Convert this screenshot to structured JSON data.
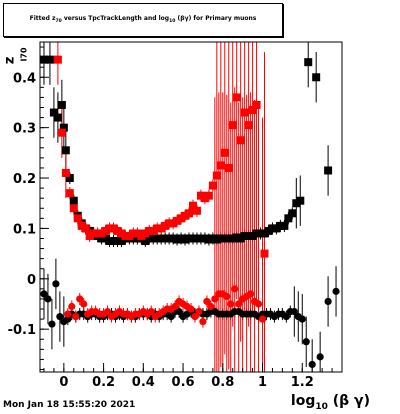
{
  "title": {
    "prefix": "Fitted z",
    "prefix_sub": "70",
    "middle": " versus TpcTrackLength and log",
    "middle_sub": "10",
    "suffix": "(βγ) for Primary muons"
  },
  "axis": {
    "ylabel_main": "z",
    "ylabel_sub": "I70",
    "xlabel_main": "log",
    "xlabel_sub": "10",
    "xlabel_suffix": " (β γ)"
  },
  "footer": "Mon Jan 18 15:55:20 2021",
  "colors": {
    "series1": "#000000",
    "series2": "#ff0000",
    "frame": "#000000"
  },
  "chart_data": {
    "type": "scatter",
    "title": "Fitted z70 versus TpcTrackLength and log10(βγ) for Primary muons",
    "xlabel": "log10 (β γ)",
    "ylabel": "z_I70",
    "xlim": [
      -0.12,
      1.4
    ],
    "ylim": [
      -0.185,
      0.47
    ],
    "grid": false,
    "legend": "none",
    "x_ticks": [
      0,
      0.2,
      0.4,
      0.6,
      0.8,
      1,
      1.2
    ],
    "x_tick_labels": [
      "0",
      "0.2",
      "0.4",
      "0.6",
      "0.8",
      "1",
      "1.2"
    ],
    "y_ticks": [
      -0.1,
      0,
      0.1,
      0.2,
      0.3,
      0.4
    ],
    "y_tick_labels": [
      "-0.1",
      "0",
      "0.1",
      "0.2",
      "0.3",
      "0.4"
    ],
    "series": [
      {
        "marker": "square",
        "color": "#000000",
        "x": [
          -0.1,
          -0.07,
          -0.05,
          -0.03,
          -0.01,
          0.0,
          0.01,
          0.03,
          0.05,
          0.07,
          0.09,
          0.11,
          0.13,
          0.15,
          0.17,
          0.19,
          0.21,
          0.23,
          0.25,
          0.27,
          0.29,
          0.31,
          0.33,
          0.35,
          0.37,
          0.39,
          0.41,
          0.43,
          0.45,
          0.47,
          0.49,
          0.51,
          0.53,
          0.55,
          0.57,
          0.59,
          0.61,
          0.63,
          0.65,
          0.67,
          0.69,
          0.71,
          0.73,
          0.75,
          0.77,
          0.79,
          0.81,
          0.83,
          0.85,
          0.87,
          0.89,
          0.91,
          0.93,
          0.95,
          0.97,
          0.99,
          1.01,
          1.03,
          1.05,
          1.07,
          1.09,
          1.11,
          1.13,
          1.15,
          1.17,
          1.19,
          1.23,
          1.27,
          1.33
        ],
        "y": [
          0.435,
          0.435,
          0.33,
          0.32,
          0.345,
          0.3,
          0.255,
          0.2,
          0.155,
          0.125,
          0.11,
          0.1,
          0.095,
          0.09,
          0.085,
          0.08,
          0.08,
          0.075,
          0.075,
          0.075,
          0.075,
          0.08,
          0.08,
          0.08,
          0.08,
          0.08,
          0.075,
          0.08,
          0.08,
          0.08,
          0.08,
          0.08,
          0.08,
          0.08,
          0.078,
          0.08,
          0.078,
          0.08,
          0.08,
          0.08,
          0.08,
          0.08,
          0.078,
          0.08,
          0.078,
          0.08,
          0.08,
          0.08,
          0.08,
          0.082,
          0.08,
          0.085,
          0.085,
          0.085,
          0.09,
          0.09,
          0.09,
          0.095,
          0.1,
          0.1,
          0.105,
          0.105,
          0.12,
          0.13,
          0.15,
          0.155,
          0.43,
          0.4,
          0.215
        ]
      },
      {
        "marker": "square",
        "color": "#ff0000",
        "x": [
          -0.03,
          -0.01,
          0.01,
          0.03,
          0.05,
          0.07,
          0.09,
          0.11,
          0.13,
          0.15,
          0.17,
          0.19,
          0.21,
          0.23,
          0.25,
          0.27,
          0.29,
          0.31,
          0.33,
          0.35,
          0.37,
          0.39,
          0.41,
          0.43,
          0.45,
          0.47,
          0.49,
          0.51,
          0.53,
          0.55,
          0.57,
          0.59,
          0.61,
          0.63,
          0.65,
          0.67,
          0.69,
          0.71,
          0.73,
          0.75,
          0.77,
          0.79,
          0.81,
          0.83,
          0.85,
          0.87,
          0.89,
          0.91,
          0.93,
          0.95,
          0.97,
          1.01
        ],
        "y": [
          0.435,
          0.29,
          0.21,
          0.17,
          0.14,
          0.12,
          0.105,
          0.1,
          0.085,
          0.09,
          0.09,
          0.09,
          0.095,
          0.1,
          0.1,
          0.095,
          0.09,
          0.085,
          0.085,
          0.09,
          0.09,
          0.085,
          0.09,
          0.095,
          0.095,
          0.1,
          0.1,
          0.105,
          0.11,
          0.11,
          0.115,
          0.12,
          0.125,
          0.13,
          0.145,
          0.135,
          0.165,
          0.16,
          0.165,
          0.185,
          0.205,
          0.225,
          0.25,
          0.22,
          0.305,
          0.36,
          0.275,
          0.33,
          0.305,
          0.335,
          0.345,
          0.05
        ]
      },
      {
        "marker": "circle",
        "color": "#000000",
        "x": [
          -0.1,
          -0.08,
          -0.06,
          -0.04,
          -0.02,
          0.0,
          0.02,
          0.04,
          0.06,
          0.08,
          0.1,
          0.12,
          0.14,
          0.16,
          0.18,
          0.2,
          0.22,
          0.24,
          0.26,
          0.28,
          0.3,
          0.32,
          0.34,
          0.36,
          0.38,
          0.4,
          0.42,
          0.44,
          0.46,
          0.48,
          0.5,
          0.52,
          0.54,
          0.56,
          0.58,
          0.6,
          0.62,
          0.64,
          0.66,
          0.68,
          0.7,
          0.72,
          0.74,
          0.76,
          0.78,
          0.8,
          0.82,
          0.84,
          0.86,
          0.88,
          0.9,
          0.92,
          0.94,
          0.96,
          0.98,
          1.0,
          1.02,
          1.04,
          1.06,
          1.08,
          1.1,
          1.12,
          1.14,
          1.16,
          1.18,
          1.2,
          1.22,
          1.25,
          1.29,
          1.33,
          1.37
        ],
        "y": [
          -0.03,
          -0.04,
          -0.09,
          -0.01,
          -0.075,
          -0.085,
          -0.08,
          -0.07,
          -0.075,
          -0.07,
          -0.07,
          -0.075,
          -0.07,
          -0.07,
          -0.075,
          -0.075,
          -0.07,
          -0.07,
          -0.075,
          -0.07,
          -0.075,
          -0.07,
          -0.075,
          -0.075,
          -0.07,
          -0.07,
          -0.07,
          -0.075,
          -0.07,
          -0.075,
          -0.07,
          -0.07,
          -0.075,
          -0.065,
          -0.065,
          -0.075,
          -0.07,
          -0.065,
          -0.07,
          -0.065,
          -0.07,
          -0.07,
          -0.065,
          -0.065,
          -0.07,
          -0.07,
          -0.07,
          -0.07,
          -0.065,
          -0.065,
          -0.07,
          -0.07,
          -0.07,
          -0.07,
          -0.075,
          -0.07,
          -0.07,
          -0.07,
          -0.075,
          -0.07,
          -0.07,
          -0.075,
          -0.065,
          -0.065,
          -0.075,
          -0.08,
          -0.125,
          -0.17,
          -0.155,
          -0.045,
          -0.025
        ]
      },
      {
        "marker": "circle",
        "color": "#ff0000",
        "x": [
          0.02,
          0.04,
          0.06,
          0.08,
          0.1,
          0.12,
          0.14,
          0.16,
          0.18,
          0.2,
          0.22,
          0.24,
          0.26,
          0.28,
          0.3,
          0.32,
          0.34,
          0.36,
          0.38,
          0.4,
          0.42,
          0.44,
          0.46,
          0.48,
          0.5,
          0.52,
          0.54,
          0.56,
          0.58,
          0.6,
          0.62,
          0.64,
          0.66,
          0.68,
          0.7,
          0.72,
          0.74,
          0.76,
          0.78,
          0.8,
          0.82,
          0.84,
          0.86,
          0.88,
          0.9,
          0.92,
          0.94,
          0.96,
          0.98,
          1.0
        ],
        "y": [
          -0.07,
          -0.055,
          -0.075,
          -0.04,
          -0.05,
          -0.07,
          -0.065,
          -0.065,
          -0.07,
          -0.07,
          -0.065,
          -0.075,
          -0.07,
          -0.065,
          -0.07,
          -0.07,
          -0.075,
          -0.07,
          -0.07,
          -0.065,
          -0.07,
          -0.065,
          -0.075,
          -0.07,
          -0.065,
          -0.06,
          -0.06,
          -0.055,
          -0.045,
          -0.05,
          -0.055,
          -0.06,
          -0.075,
          -0.065,
          -0.085,
          -0.045,
          -0.055,
          -0.04,
          -0.03,
          -0.03,
          -0.035,
          -0.05,
          -0.02,
          -0.05,
          -0.04,
          -0.035,
          -0.03,
          -0.045,
          -0.05,
          -0.08
        ]
      }
    ]
  }
}
